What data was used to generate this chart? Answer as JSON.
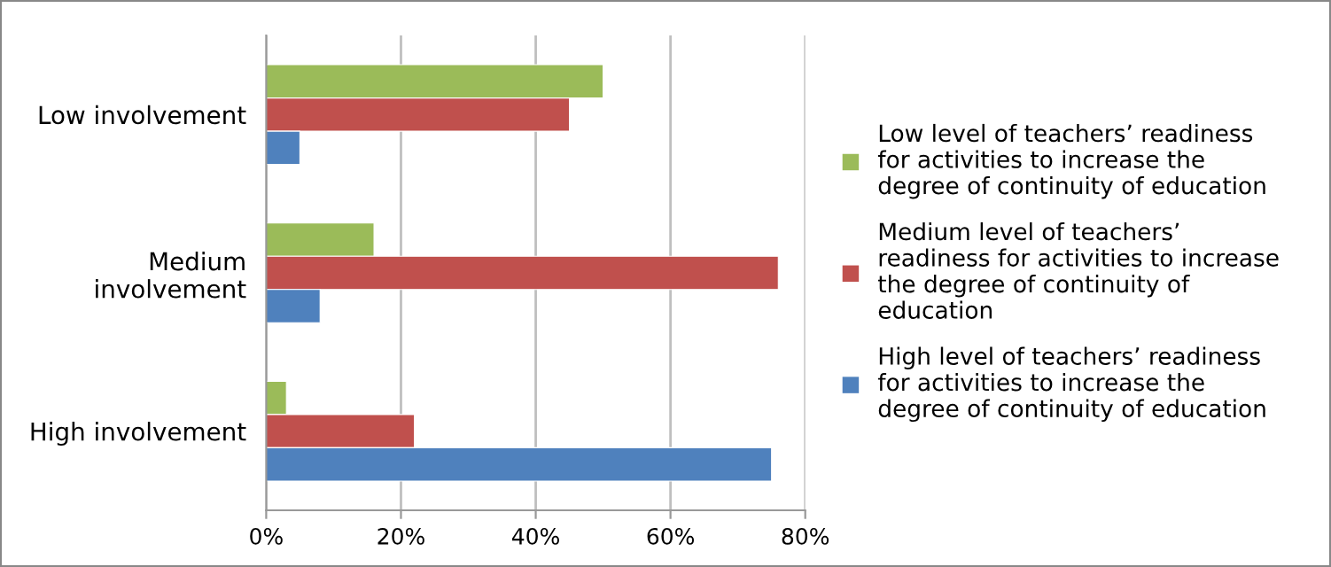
{
  "chart_data": {
    "type": "bar",
    "orientation": "horizontal",
    "categories": [
      "Low involvement",
      "Medium\ninvolvement",
      "High involvement"
    ],
    "series": [
      {
        "name": "Low level of teachers’ readiness\nfor activities to increase the\ndegree of continuity of education",
        "color": "#9bbb59",
        "values": [
          50,
          16,
          3
        ]
      },
      {
        "name": "Medium level of teachers’\nreadiness for activities to increase\nthe degree of continuity of\neducation",
        "color": "#c0504d",
        "values": [
          45,
          76,
          22
        ]
      },
      {
        "name": "High level of teachers’ readiness\nfor activities to increase the\ndegree of continuity of education",
        "color": "#4f81bd",
        "values": [
          5,
          8,
          75
        ]
      }
    ],
    "xlim": [
      0,
      80
    ],
    "xticks": [
      {
        "value": 0,
        "label": "0%"
      },
      {
        "value": 20,
        "label": "20%"
      },
      {
        "value": 40,
        "label": "40%"
      },
      {
        "value": 60,
        "label": "60%"
      },
      {
        "value": 80,
        "label": "80%"
      }
    ],
    "grid": "x",
    "legend": "right"
  }
}
